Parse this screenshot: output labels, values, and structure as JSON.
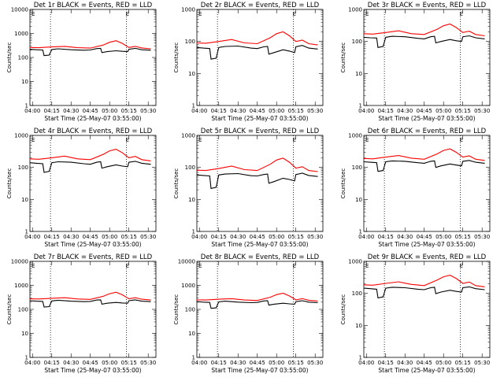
{
  "chart_data": [
    {
      "type": "line",
      "title": "Det 1r BLACK = Events, RED = LLD",
      "xlabel": "Start Time (25-May-07 03:55:00)",
      "ylabel": "Counts/sec",
      "xticks": [
        "04:00",
        "04:15",
        "04:30",
        "04:45",
        "05:00",
        "05:15",
        "05:30"
      ],
      "yticks": [
        "1",
        "10",
        "100",
        "1000",
        "10000"
      ],
      "ylim": [
        1,
        10000
      ],
      "yscale": "log",
      "xlim": [
        "03:58",
        "05:36"
      ],
      "markers": [
        "04:14",
        "05:13"
      ],
      "annotation": "E",
      "series": [
        {
          "color": "#000000",
          "x": [
            "03:58",
            "04:03",
            "04:08",
            "04:09",
            "04:13",
            "04:15",
            "04:20",
            "04:30",
            "04:40",
            "04:45",
            "04:50",
            "04:53",
            "04:54",
            "04:58",
            "05:05",
            "05:10",
            "05:14",
            "05:15",
            "05:20",
            "05:25",
            "05:32"
          ],
          "y": [
            220,
            210,
            205,
            120,
            125,
            215,
            230,
            210,
            200,
            205,
            235,
            240,
            160,
            175,
            190,
            180,
            175,
            220,
            240,
            210,
            200
          ]
        },
        {
          "color": "#ff0000",
          "x": [
            "03:58",
            "04:05",
            "04:15",
            "04:25",
            "04:35",
            "04:45",
            "04:55",
            "05:00",
            "05:05",
            "05:10",
            "05:15",
            "05:20",
            "05:25",
            "05:32"
          ],
          "y": [
            260,
            255,
            275,
            290,
            255,
            245,
            330,
            430,
            500,
            380,
            260,
            290,
            250,
            230
          ]
        }
      ]
    },
    {
      "type": "line",
      "title": "Det 2r BLACK = Events, RED = LLD",
      "xlabel": "Start Time (25-May-07 03:55:00)",
      "ylabel": "Counts/sec",
      "xticks": [
        "04:00",
        "04:15",
        "04:30",
        "04:45",
        "05:00",
        "05:15",
        "05:30"
      ],
      "yticks": [
        "1",
        "10",
        "100",
        "1000"
      ],
      "ylim": [
        1,
        1000
      ],
      "yscale": "log",
      "xlim": [
        "03:58",
        "05:36"
      ],
      "markers": [
        "04:14",
        "05:13"
      ],
      "annotation": "E",
      "series": [
        {
          "color": "#000000",
          "x": [
            "03:58",
            "04:03",
            "04:08",
            "04:09",
            "04:13",
            "04:15",
            "04:20",
            "04:30",
            "04:40",
            "04:45",
            "04:50",
            "04:53",
            "04:54",
            "04:58",
            "05:05",
            "05:10",
            "05:14",
            "05:15",
            "05:20",
            "05:25",
            "05:32"
          ],
          "y": [
            65,
            62,
            60,
            28,
            30,
            65,
            70,
            72,
            62,
            60,
            68,
            70,
            40,
            45,
            55,
            50,
            45,
            68,
            75,
            62,
            58
          ]
        },
        {
          "color": "#ff0000",
          "x": [
            "03:58",
            "04:05",
            "04:15",
            "04:25",
            "04:35",
            "04:45",
            "04:55",
            "05:00",
            "05:05",
            "05:10",
            "05:15",
            "05:20",
            "05:25",
            "05:32"
          ],
          "y": [
            90,
            88,
            100,
            115,
            90,
            85,
            130,
            175,
            200,
            150,
            100,
            110,
            85,
            78
          ]
        }
      ]
    },
    {
      "type": "line",
      "title": "Det 3r BLACK = Events, RED = LLD",
      "xlabel": "Start Time (25-May-07 03:55:00)",
      "ylabel": "Counts/sec",
      "xticks": [
        "04:00",
        "04:15",
        "04:30",
        "04:45",
        "05:00",
        "05:15",
        "05:30"
      ],
      "yticks": [
        "1",
        "10",
        "100",
        "1000"
      ],
      "ylim": [
        1,
        1000
      ],
      "yscale": "log",
      "xlim": [
        "03:58",
        "05:36"
      ],
      "markers": [
        "04:14",
        "05:13"
      ],
      "annotation": "E",
      "series": [
        {
          "color": "#000000",
          "x": [
            "03:58",
            "04:03",
            "04:08",
            "04:09",
            "04:13",
            "04:15",
            "04:20",
            "04:30",
            "04:40",
            "04:45",
            "04:50",
            "04:53",
            "04:54",
            "04:58",
            "05:05",
            "05:10",
            "05:14",
            "05:15",
            "05:20",
            "05:25",
            "05:32"
          ],
          "y": [
            135,
            130,
            128,
            65,
            70,
            135,
            145,
            140,
            125,
            120,
            140,
            145,
            90,
            100,
            115,
            105,
            100,
            140,
            150,
            130,
            120
          ]
        },
        {
          "color": "#ff0000",
          "x": [
            "03:58",
            "04:05",
            "04:15",
            "04:25",
            "04:35",
            "04:45",
            "04:55",
            "05:00",
            "05:05",
            "05:10",
            "05:15",
            "05:20",
            "05:25",
            "05:32"
          ],
          "y": [
            175,
            170,
            190,
            215,
            175,
            165,
            240,
            310,
            350,
            270,
            190,
            210,
            165,
            150
          ]
        }
      ]
    },
    {
      "type": "line",
      "title": "Det 4r BLACK = Events, RED = LLD",
      "xlabel": "Start Time (25-May-07 03:55:00)",
      "ylabel": "Counts/sec",
      "xticks": [
        "04:00",
        "04:15",
        "04:30",
        "04:45",
        "05:00",
        "05:15",
        "05:30"
      ],
      "yticks": [
        "1",
        "10",
        "100",
        "1000"
      ],
      "ylim": [
        1,
        1000
      ],
      "yscale": "log",
      "xlim": [
        "03:58",
        "05:36"
      ],
      "markers": [
        "04:14",
        "05:13"
      ],
      "annotation": "E",
      "series": [
        {
          "color": "#000000",
          "x": [
            "03:58",
            "04:03",
            "04:08",
            "04:09",
            "04:13",
            "04:15",
            "04:20",
            "04:30",
            "04:40",
            "04:45",
            "04:50",
            "04:53",
            "04:54",
            "04:58",
            "05:05",
            "05:10",
            "05:14",
            "05:15",
            "05:20",
            "05:25",
            "05:32"
          ],
          "y": [
            140,
            135,
            130,
            70,
            75,
            140,
            150,
            145,
            130,
            125,
            145,
            150,
            95,
            105,
            120,
            110,
            105,
            145,
            155,
            135,
            125
          ]
        },
        {
          "color": "#ff0000",
          "x": [
            "03:58",
            "04:05",
            "04:15",
            "04:25",
            "04:35",
            "04:45",
            "04:55",
            "05:00",
            "05:05",
            "05:10",
            "05:15",
            "05:20",
            "05:25",
            "05:32"
          ],
          "y": [
            185,
            180,
            200,
            225,
            185,
            175,
            255,
            330,
            370,
            285,
            200,
            220,
            175,
            160
          ]
        }
      ]
    },
    {
      "type": "line",
      "title": "Det 5r BLACK = Events, RED = LLD",
      "xlabel": "Start Time (25-May-07 03:55:00)",
      "ylabel": "Counts/sec",
      "xticks": [
        "04:00",
        "04:15",
        "04:30",
        "04:45",
        "05:00",
        "05:15",
        "05:30"
      ],
      "yticks": [
        "1",
        "10",
        "100",
        "1000"
      ],
      "ylim": [
        1,
        1000
      ],
      "yscale": "log",
      "xlim": [
        "03:58",
        "05:36"
      ],
      "markers": [
        "04:14",
        "05:13"
      ],
      "annotation": "E",
      "series": [
        {
          "color": "#000000",
          "x": [
            "03:58",
            "04:03",
            "04:08",
            "04:09",
            "04:13",
            "04:15",
            "04:20",
            "04:30",
            "04:40",
            "04:45",
            "04:50",
            "04:53",
            "04:54",
            "04:58",
            "05:05",
            "05:10",
            "05:14",
            "05:15",
            "05:20",
            "05:25",
            "05:32"
          ],
          "y": [
            58,
            56,
            54,
            22,
            24,
            58,
            62,
            64,
            55,
            54,
            60,
            62,
            32,
            36,
            46,
            42,
            38,
            60,
            66,
            56,
            52
          ]
        },
        {
          "color": "#ff0000",
          "x": [
            "03:58",
            "04:05",
            "04:15",
            "04:25",
            "04:35",
            "04:45",
            "04:55",
            "05:00",
            "05:05",
            "05:10",
            "05:15",
            "05:20",
            "05:25",
            "05:32"
          ],
          "y": [
            82,
            80,
            92,
            110,
            85,
            80,
            125,
            170,
            195,
            145,
            95,
            105,
            80,
            74
          ]
        }
      ]
    },
    {
      "type": "line",
      "title": "Det 6r BLACK = Events, RED = LLD",
      "xlabel": "Start Time (25-May-07 03:55:00)",
      "ylabel": "Counts/sec",
      "xticks": [
        "04:00",
        "04:15",
        "04:30",
        "04:45",
        "05:00",
        "05:15",
        "05:30"
      ],
      "yticks": [
        "1",
        "10",
        "100",
        "1000"
      ],
      "ylim": [
        1,
        1000
      ],
      "yscale": "log",
      "xlim": [
        "03:58",
        "05:36"
      ],
      "markers": [
        "04:14",
        "05:13"
      ],
      "annotation": "E",
      "series": [
        {
          "color": "#000000",
          "x": [
            "03:58",
            "04:03",
            "04:08",
            "04:09",
            "04:13",
            "04:15",
            "04:20",
            "04:30",
            "04:40",
            "04:45",
            "04:50",
            "04:53",
            "04:54",
            "04:58",
            "05:05",
            "05:10",
            "05:14",
            "05:15",
            "05:20",
            "05:25",
            "05:32"
          ],
          "y": [
            150,
            145,
            140,
            75,
            80,
            150,
            160,
            155,
            140,
            135,
            155,
            160,
            100,
            112,
            128,
            118,
            112,
            155,
            165,
            145,
            135
          ]
        },
        {
          "color": "#ff0000",
          "x": [
            "03:58",
            "04:05",
            "04:15",
            "04:25",
            "04:35",
            "04:45",
            "04:55",
            "05:00",
            "05:05",
            "05:10",
            "05:15",
            "05:20",
            "05:25",
            "05:32"
          ],
          "y": [
            190,
            185,
            210,
            235,
            195,
            180,
            265,
            340,
            380,
            295,
            210,
            230,
            180,
            165
          ]
        }
      ]
    },
    {
      "type": "line",
      "title": "Det 7r BLACK = Events, RED = LLD",
      "xlabel": "Start Time (25-May-07 03:55:00)",
      "ylabel": "Counts/sec",
      "xticks": [
        "04:00",
        "04:15",
        "04:30",
        "04:45",
        "05:00",
        "05:15",
        "05:30"
      ],
      "yticks": [
        "1",
        "10",
        "100",
        "1000",
        "10000"
      ],
      "ylim": [
        1,
        10000
      ],
      "yscale": "log",
      "xlim": [
        "03:58",
        "05:36"
      ],
      "markers": [
        "04:14",
        "05:13"
      ],
      "annotation": "E",
      "series": [
        {
          "color": "#000000",
          "x": [
            "03:58",
            "04:03",
            "04:08",
            "04:09",
            "04:13",
            "04:15",
            "04:20",
            "04:30",
            "04:40",
            "04:45",
            "04:50",
            "04:53",
            "04:54",
            "04:58",
            "05:05",
            "05:10",
            "05:14",
            "05:15",
            "05:20",
            "05:25",
            "05:32"
          ],
          "y": [
            230,
            220,
            215,
            125,
            130,
            225,
            240,
            220,
            210,
            215,
            245,
            250,
            165,
            180,
            195,
            185,
            180,
            230,
            250,
            220,
            210
          ]
        },
        {
          "color": "#ff0000",
          "x": [
            "03:58",
            "04:05",
            "04:15",
            "04:25",
            "04:35",
            "04:45",
            "04:55",
            "05:00",
            "05:05",
            "05:10",
            "05:15",
            "05:20",
            "05:25",
            "05:32"
          ],
          "y": [
            275,
            270,
            290,
            305,
            270,
            260,
            350,
            450,
            520,
            400,
            275,
            305,
            265,
            245
          ]
        }
      ]
    },
    {
      "type": "line",
      "title": "Det 8r BLACK = Events, RED = LLD",
      "xlabel": "Start Time (25-May-07 03:55:00)",
      "ylabel": "Counts/sec",
      "xticks": [
        "04:00",
        "04:15",
        "04:30",
        "04:45",
        "05:00",
        "05:15",
        "05:30"
      ],
      "yticks": [
        "1",
        "10",
        "100",
        "1000",
        "10000"
      ],
      "ylim": [
        1,
        10000
      ],
      "yscale": "log",
      "xlim": [
        "03:58",
        "05:36"
      ],
      "markers": [
        "04:14",
        "05:13"
      ],
      "annotation": "E",
      "series": [
        {
          "color": "#000000",
          "x": [
            "03:58",
            "04:03",
            "04:08",
            "04:09",
            "04:13",
            "04:15",
            "04:20",
            "04:30",
            "04:40",
            "04:45",
            "04:50",
            "04:53",
            "04:54",
            "04:58",
            "05:05",
            "05:10",
            "05:14",
            "05:15",
            "05:20",
            "05:25",
            "05:32"
          ],
          "y": [
            210,
            200,
            195,
            110,
            115,
            205,
            220,
            200,
            190,
            195,
            225,
            230,
            150,
            165,
            180,
            170,
            165,
            210,
            230,
            200,
            190
          ]
        },
        {
          "color": "#ff0000",
          "x": [
            "03:58",
            "04:05",
            "04:15",
            "04:25",
            "04:35",
            "04:45",
            "04:55",
            "05:00",
            "05:05",
            "05:10",
            "05:15",
            "05:20",
            "05:25",
            "05:32"
          ],
          "y": [
            250,
            245,
            265,
            280,
            245,
            235,
            320,
            410,
            470,
            360,
            250,
            280,
            240,
            220
          ]
        }
      ]
    },
    {
      "type": "line",
      "title": "Det 9r BLACK = Events, RED = LLD",
      "xlabel": "Start Time (25-May-07 03:55:00)",
      "ylabel": "Counts/sec",
      "xticks": [
        "04:00",
        "04:15",
        "04:30",
        "04:45",
        "05:00",
        "05:15",
        "05:30"
      ],
      "yticks": [
        "1",
        "10",
        "100",
        "1000"
      ],
      "ylim": [
        1,
        1000
      ],
      "yscale": "log",
      "xlim": [
        "03:58",
        "05:36"
      ],
      "markers": [
        "04:14",
        "05:13"
      ],
      "annotation": "E",
      "series": [
        {
          "color": "#000000",
          "x": [
            "03:58",
            "04:03",
            "04:08",
            "04:09",
            "04:13",
            "04:15",
            "04:20",
            "04:30",
            "04:40",
            "04:45",
            "04:50",
            "04:53",
            "04:54",
            "04:58",
            "05:05",
            "05:10",
            "05:14",
            "05:15",
            "05:20",
            "05:25",
            "05:32"
          ],
          "y": [
            145,
            140,
            135,
            72,
            78,
            145,
            155,
            150,
            135,
            130,
            150,
            155,
            98,
            110,
            125,
            115,
            110,
            150,
            160,
            140,
            130
          ]
        },
        {
          "color": "#ff0000",
          "x": [
            "03:58",
            "04:05",
            "04:15",
            "04:25",
            "04:35",
            "04:45",
            "04:55",
            "05:00",
            "05:05",
            "05:10",
            "05:15",
            "05:20",
            "05:25",
            "05:32"
          ],
          "y": [
            185,
            180,
            205,
            230,
            190,
            175,
            260,
            330,
            370,
            290,
            205,
            225,
            175,
            160
          ]
        }
      ]
    }
  ]
}
